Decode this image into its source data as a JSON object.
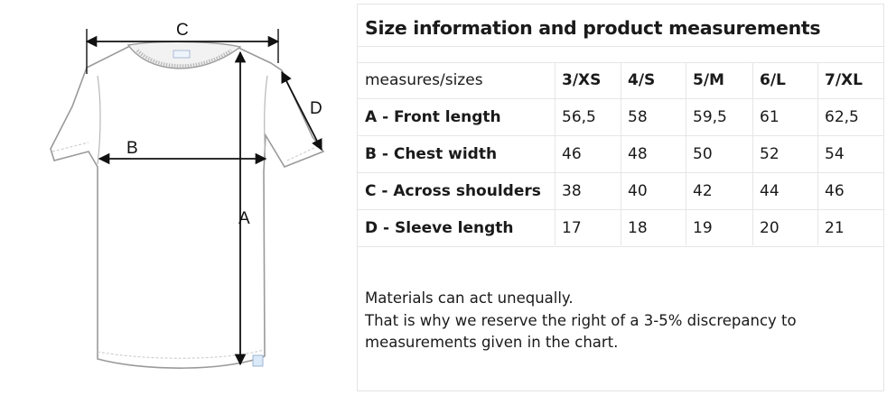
{
  "diagram": {
    "labels": {
      "a": "A",
      "b": "B",
      "c": "C",
      "d": "D"
    }
  },
  "table": {
    "title": "Size information and product measurements",
    "header_label": "measures/sizes",
    "sizes": [
      "3/XS",
      "4/S",
      "5/M",
      "6/L",
      "7/XL"
    ],
    "rows": [
      {
        "label": "A - Front length",
        "values": [
          "56,5",
          "58",
          "59,5",
          "61",
          "62,5"
        ]
      },
      {
        "label": "B - Chest width",
        "values": [
          "46",
          "48",
          "50",
          "52",
          "54"
        ]
      },
      {
        "label": "C - Across shoulders",
        "values": [
          "38",
          "40",
          "42",
          "44",
          "46"
        ]
      },
      {
        "label": "D - Sleeve length",
        "values": [
          "17",
          "18",
          "19",
          "20",
          "21"
        ]
      }
    ]
  },
  "note": {
    "line1": "Materials can act unequally.",
    "line2": "That is why we reserve the right of a 3-5% discrepancy to",
    "line3": "measurements given in the chart."
  }
}
